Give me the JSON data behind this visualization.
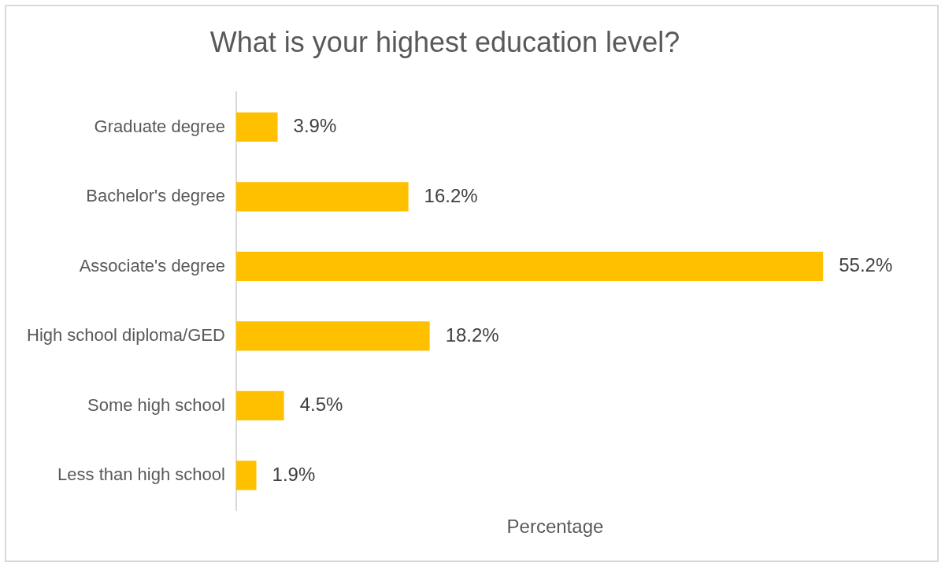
{
  "chart_data": {
    "type": "bar",
    "orientation": "horizontal",
    "title": "What is your highest education level?",
    "xlabel": "Percentage",
    "categories": [
      "Graduate degree",
      "Bachelor's degree",
      "Associate's degree",
      "High school diploma/GED",
      "Some high school",
      "Less than high school"
    ],
    "values": [
      3.9,
      16.2,
      55.2,
      18.2,
      4.5,
      1.9
    ],
    "value_labels": [
      "3.9%",
      "16.2%",
      "55.2%",
      "18.2%",
      "4.5%",
      "1.9%"
    ],
    "color": "#ffc000",
    "grid": false,
    "legend": false,
    "tick_labels": "y"
  }
}
